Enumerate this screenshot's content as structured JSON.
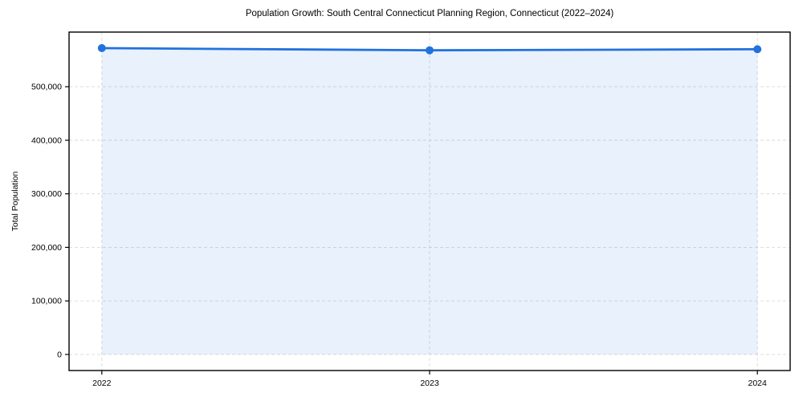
{
  "figure": {
    "background": "#ffffff"
  },
  "chart_data": {
    "type": "line",
    "title": "Population Growth: South Central Connecticut Planning Region, Connecticut (2022–2024)",
    "xlabel": "",
    "ylabel": "Total Population",
    "x": [
      2022,
      2023,
      2024
    ],
    "categories": [
      "2022",
      "2023",
      "2024"
    ],
    "series": [
      {
        "name": "Total Population",
        "values": [
          572000,
          568000,
          570000
        ]
      }
    ],
    "fill_area": true,
    "fill_to": 0,
    "marker": "circle",
    "grid": true,
    "grid_style": "dashed",
    "legend": false,
    "xlim": [
      2021.9,
      2024.1
    ],
    "ylim": [
      -30000,
      602000
    ],
    "xticks": [
      2022,
      2023,
      2024
    ],
    "xtick_labels": [
      "2022",
      "2023",
      "2024"
    ],
    "yticks": [
      0,
      100000,
      200000,
      300000,
      400000,
      500000
    ],
    "ytick_labels": [
      "0",
      "100,000",
      "200,000",
      "300,000",
      "400,000",
      "500,000"
    ],
    "colors": {
      "line": "#2272dd",
      "marker": "#2272dd",
      "fill": "rgba(34,114,221,0.10)",
      "grid": "#d9d9d9",
      "spine": "#000000",
      "text": "#000000"
    }
  }
}
